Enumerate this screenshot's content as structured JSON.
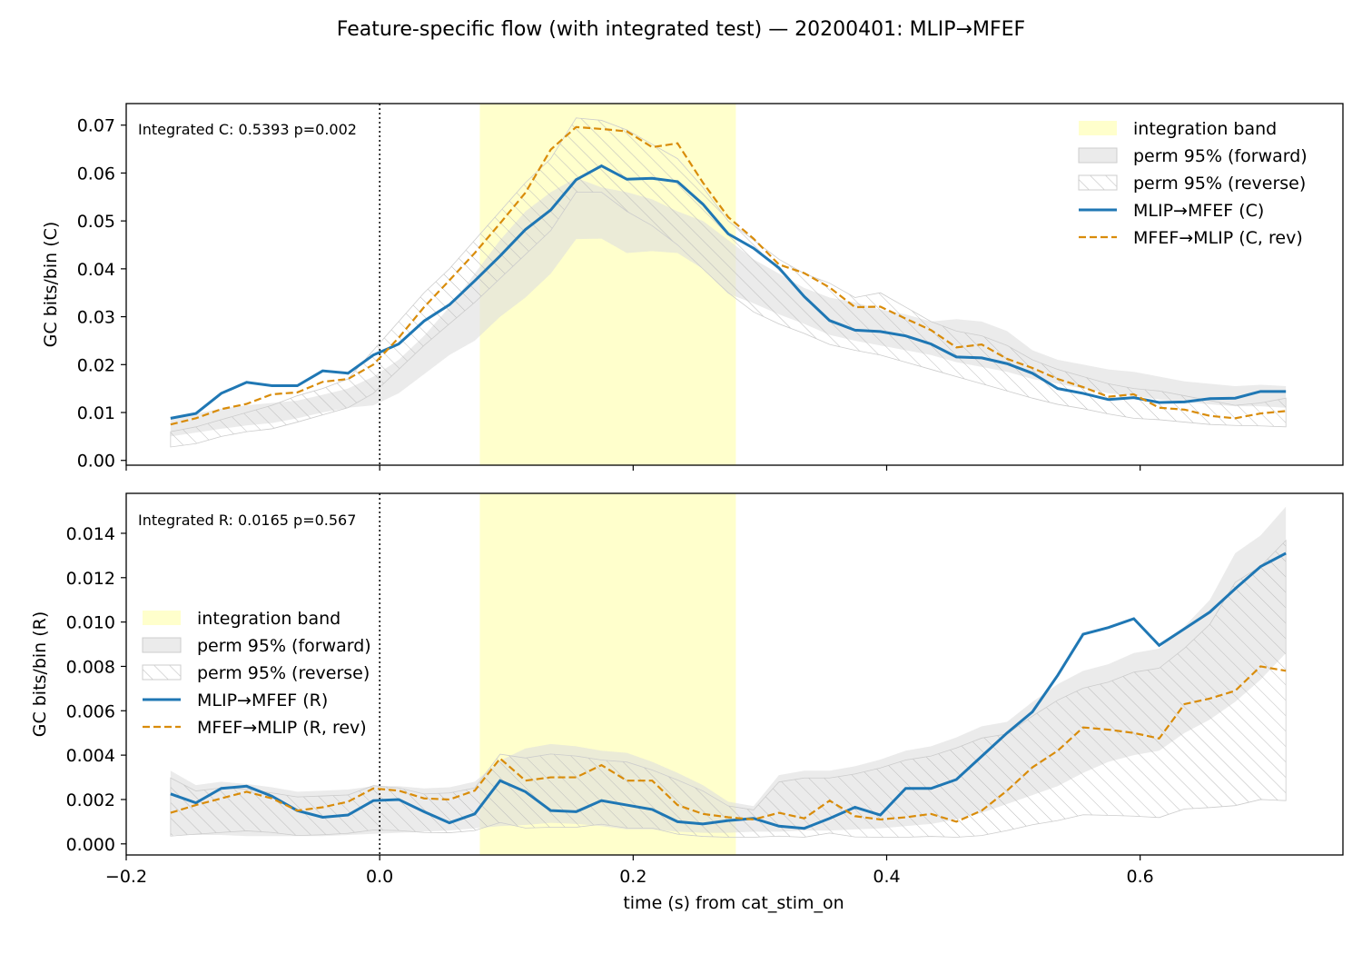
{
  "figure_title": "Feature-specific flow (with integrated test) — 20200401: MLIP→MFEF",
  "xlabel": "time (s) from cat_stim_on",
  "colors": {
    "forward": "#1f77b4",
    "reverse": "#d98c0a",
    "band": "#ffffcc",
    "perm_fill": "#dddddd",
    "hatch": "#bbbbbb"
  },
  "chart_data": [
    {
      "type": "line",
      "panel": "top",
      "ylabel": "GC bits/bin (C)",
      "annotation": "Integrated C: 0.5393  p=0.002",
      "xlim": [
        -0.2,
        0.76
      ],
      "ylim": [
        -0.001,
        0.0745
      ],
      "xticks": [
        -0.2,
        0.0,
        0.2,
        0.4,
        0.6
      ],
      "xtick_labels_shown": false,
      "yticks": [
        0.0,
        0.01,
        0.02,
        0.03,
        0.04,
        0.05,
        0.06,
        0.07
      ],
      "ytick_labels": [
        "0.00",
        "0.01",
        "0.02",
        "0.03",
        "0.04",
        "0.05",
        "0.06",
        "0.07"
      ],
      "vline_x": 0.0,
      "integration_band": [
        0.079,
        0.281
      ],
      "legend_placement": "upper-right",
      "legend": [
        "integration band",
        "perm 95% (forward)",
        "perm 95% (reverse)",
        "MLIP→MFEF (C)",
        "MFEF→MLIP (C, rev)"
      ],
      "x": [
        -0.165,
        -0.145,
        -0.125,
        -0.105,
        -0.085,
        -0.065,
        -0.045,
        -0.025,
        -0.005,
        0.015,
        0.035,
        0.055,
        0.075,
        0.095,
        0.115,
        0.135,
        0.155,
        0.175,
        0.195,
        0.215,
        0.235,
        0.255,
        0.275,
        0.295,
        0.315,
        0.335,
        0.355,
        0.375,
        0.395,
        0.415,
        0.435,
        0.455,
        0.475,
        0.495,
        0.515,
        0.535,
        0.555,
        0.575,
        0.595,
        0.615,
        0.635,
        0.655,
        0.675,
        0.695,
        0.715
      ],
      "series": [
        {
          "name": "MLIP→MFEF (C)",
          "style": "solid",
          "values": [
            0.0088,
            0.0098,
            0.014,
            0.0163,
            0.0156,
            0.0156,
            0.0187,
            0.0182,
            0.022,
            0.0243,
            0.0291,
            0.0325,
            0.0375,
            0.0427,
            0.0482,
            0.0523,
            0.0586,
            0.0615,
            0.0587,
            0.0589,
            0.0582,
            0.0535,
            0.0473,
            0.0443,
            0.0402,
            0.0342,
            0.0292,
            0.0272,
            0.0269,
            0.026,
            0.0243,
            0.0216,
            0.0214,
            0.0202,
            0.0182,
            0.015,
            0.014,
            0.0127,
            0.0131,
            0.0121,
            0.0122,
            0.0129,
            0.013,
            0.0144,
            0.0144
          ]
        },
        {
          "name": "MFEF→MLIP (C, rev)",
          "style": "dashed",
          "values": [
            0.0075,
            0.0088,
            0.0107,
            0.0118,
            0.0138,
            0.0142,
            0.0164,
            0.017,
            0.02,
            0.0256,
            0.032,
            0.0376,
            0.0433,
            0.0495,
            0.0559,
            0.0649,
            0.0696,
            0.0692,
            0.0687,
            0.0654,
            0.0662,
            0.058,
            0.0508,
            0.0463,
            0.0409,
            0.0391,
            0.0361,
            0.032,
            0.0321,
            0.0296,
            0.0272,
            0.0236,
            0.0242,
            0.0212,
            0.0193,
            0.017,
            0.0153,
            0.0133,
            0.0138,
            0.011,
            0.0106,
            0.0093,
            0.0088,
            0.0098,
            0.0103
          ]
        }
      ],
      "perm_forward_lower": [
        0.005,
        0.0058,
        0.0066,
        0.0073,
        0.0078,
        0.0088,
        0.01,
        0.011,
        0.0115,
        0.014,
        0.018,
        0.022,
        0.025,
        0.03,
        0.034,
        0.039,
        0.0462,
        0.0463,
        0.0433,
        0.0437,
        0.0433,
        0.04,
        0.0348,
        0.0328,
        0.0305,
        0.0285,
        0.0262,
        0.025,
        0.024,
        0.023,
        0.022,
        0.0205,
        0.0195,
        0.0185,
        0.017,
        0.016,
        0.015,
        0.014,
        0.0135,
        0.0127,
        0.0122,
        0.0117,
        0.0113,
        0.0113,
        0.011
      ],
      "perm_forward_upper": [
        0.009,
        0.0098,
        0.0108,
        0.0115,
        0.012,
        0.0125,
        0.0137,
        0.015,
        0.0175,
        0.021,
        0.026,
        0.032,
        0.039,
        0.046,
        0.052,
        0.056,
        0.059,
        0.057,
        0.056,
        0.0545,
        0.052,
        0.05,
        0.046,
        0.042,
        0.039,
        0.036,
        0.034,
        0.033,
        0.0315,
        0.0305,
        0.029,
        0.0295,
        0.029,
        0.027,
        0.023,
        0.021,
        0.02,
        0.019,
        0.0185,
        0.0175,
        0.0165,
        0.016,
        0.0155,
        0.0158,
        0.0155
      ],
      "perm_reverse_lower": [
        0.0028,
        0.0035,
        0.005,
        0.006,
        0.0066,
        0.008,
        0.0095,
        0.011,
        0.014,
        0.019,
        0.024,
        0.0285,
        0.033,
        0.038,
        0.043,
        0.048,
        0.056,
        0.056,
        0.052,
        0.049,
        0.045,
        0.04,
        0.035,
        0.031,
        0.0285,
        0.0265,
        0.0242,
        0.023,
        0.022,
        0.0205,
        0.019,
        0.0175,
        0.016,
        0.0145,
        0.013,
        0.0117,
        0.0108,
        0.0097,
        0.0088,
        0.0085,
        0.008,
        0.0075,
        0.0073,
        0.0072,
        0.007
      ],
      "perm_reverse_upper": [
        0.006,
        0.007,
        0.0085,
        0.01,
        0.0115,
        0.0135,
        0.015,
        0.017,
        0.023,
        0.029,
        0.035,
        0.04,
        0.046,
        0.052,
        0.058,
        0.063,
        0.0715,
        0.071,
        0.069,
        0.066,
        0.063,
        0.057,
        0.05,
        0.046,
        0.042,
        0.039,
        0.037,
        0.034,
        0.035,
        0.032,
        0.029,
        0.027,
        0.026,
        0.024,
        0.021,
        0.019,
        0.0175,
        0.016,
        0.015,
        0.0145,
        0.0135,
        0.0125,
        0.0115,
        0.012,
        0.013
      ]
    },
    {
      "type": "line",
      "panel": "bottom",
      "ylabel": "GC bits/bin (R)",
      "annotation": "Integrated R: 0.0165  p=0.567",
      "xlim": [
        -0.2,
        0.76
      ],
      "ylim": [
        -0.0005,
        0.0158
      ],
      "xticks": [
        -0.2,
        0.0,
        0.2,
        0.4,
        0.6
      ],
      "xtick_labels": [
        "−0.2",
        "0.0",
        "0.2",
        "0.4",
        "0.6"
      ],
      "yticks": [
        0.0,
        0.002,
        0.004,
        0.006,
        0.008,
        0.01,
        0.012,
        0.014
      ],
      "ytick_labels": [
        "0.000",
        "0.002",
        "0.004",
        "0.006",
        "0.008",
        "0.010",
        "0.012",
        "0.014"
      ],
      "vline_x": 0.0,
      "integration_band": [
        0.079,
        0.281
      ],
      "legend_placement": "center-left",
      "legend": [
        "integration band",
        "perm 95% (forward)",
        "perm 95% (reverse)",
        "MLIP→MFEF (R)",
        "MFEF→MLIP (R, rev)"
      ],
      "x": [
        -0.165,
        -0.145,
        -0.125,
        -0.105,
        -0.085,
        -0.065,
        -0.045,
        -0.025,
        -0.005,
        0.015,
        0.035,
        0.055,
        0.075,
        0.095,
        0.115,
        0.135,
        0.155,
        0.175,
        0.195,
        0.215,
        0.235,
        0.255,
        0.275,
        0.295,
        0.315,
        0.335,
        0.355,
        0.375,
        0.395,
        0.415,
        0.435,
        0.455,
        0.475,
        0.495,
        0.515,
        0.535,
        0.555,
        0.575,
        0.595,
        0.615,
        0.635,
        0.655,
        0.675,
        0.695,
        0.715
      ],
      "series": [
        {
          "name": "MLIP→MFEF (R)",
          "style": "solid",
          "values": [
            0.00225,
            0.00185,
            0.0025,
            0.0026,
            0.00215,
            0.0015,
            0.0012,
            0.0013,
            0.00195,
            0.002,
            0.00145,
            0.00095,
            0.00135,
            0.00285,
            0.00235,
            0.0015,
            0.00145,
            0.00195,
            0.00175,
            0.00155,
            0.001,
            0.0009,
            0.00105,
            0.00115,
            0.0008,
            0.0007,
            0.00115,
            0.00165,
            0.0013,
            0.0025,
            0.0025,
            0.0029,
            0.00395,
            0.005,
            0.00595,
            0.0076,
            0.00945,
            0.00975,
            0.01015,
            0.00895,
            0.0097,
            0.01045,
            0.0115,
            0.0125,
            0.0131
          ]
        },
        {
          "name": "MFEF→MLIP (R, rev)",
          "style": "dashed",
          "values": [
            0.0014,
            0.00175,
            0.00205,
            0.00235,
            0.00205,
            0.0015,
            0.00165,
            0.0019,
            0.0025,
            0.0024,
            0.00205,
            0.002,
            0.0024,
            0.00385,
            0.00285,
            0.003,
            0.003,
            0.00355,
            0.00285,
            0.00285,
            0.00175,
            0.00135,
            0.0012,
            0.0011,
            0.0014,
            0.00115,
            0.00195,
            0.00125,
            0.0011,
            0.0012,
            0.00135,
            0.001,
            0.0015,
            0.0024,
            0.00345,
            0.0042,
            0.00525,
            0.00515,
            0.005,
            0.00475,
            0.0063,
            0.00655,
            0.0069,
            0.008,
            0.0078
          ]
        }
      ],
      "perm_forward_lower": [
        0.0004,
        0.0004,
        0.0004,
        0.00035,
        0.00035,
        0.00035,
        0.00035,
        0.0004,
        0.00045,
        0.0005,
        0.00055,
        0.0006,
        0.0007,
        0.0008,
        0.00085,
        0.00095,
        0.0009,
        0.0008,
        0.00065,
        0.00065,
        0.00055,
        0.0005,
        0.0005,
        0.00055,
        0.00055,
        0.0006,
        0.0006,
        0.00065,
        0.0007,
        0.0008,
        0.0009,
        0.0011,
        0.0014,
        0.0018,
        0.0022,
        0.0026,
        0.0032,
        0.0037,
        0.004,
        0.0042,
        0.005,
        0.0056,
        0.0064,
        0.0074,
        0.0086
      ],
      "perm_forward_upper": [
        0.0033,
        0.00265,
        0.0028,
        0.0027,
        0.00255,
        0.00235,
        0.0024,
        0.00245,
        0.0026,
        0.0026,
        0.0025,
        0.00255,
        0.0028,
        0.00375,
        0.0043,
        0.0045,
        0.0044,
        0.0042,
        0.0041,
        0.0037,
        0.0032,
        0.00265,
        0.0019,
        0.0017,
        0.0031,
        0.0033,
        0.0033,
        0.0035,
        0.0038,
        0.0042,
        0.0044,
        0.0048,
        0.0053,
        0.0055,
        0.0064,
        0.0072,
        0.0078,
        0.0081,
        0.0086,
        0.0088,
        0.0098,
        0.011,
        0.0131,
        0.0139,
        0.0152
      ]
    }
  ]
}
